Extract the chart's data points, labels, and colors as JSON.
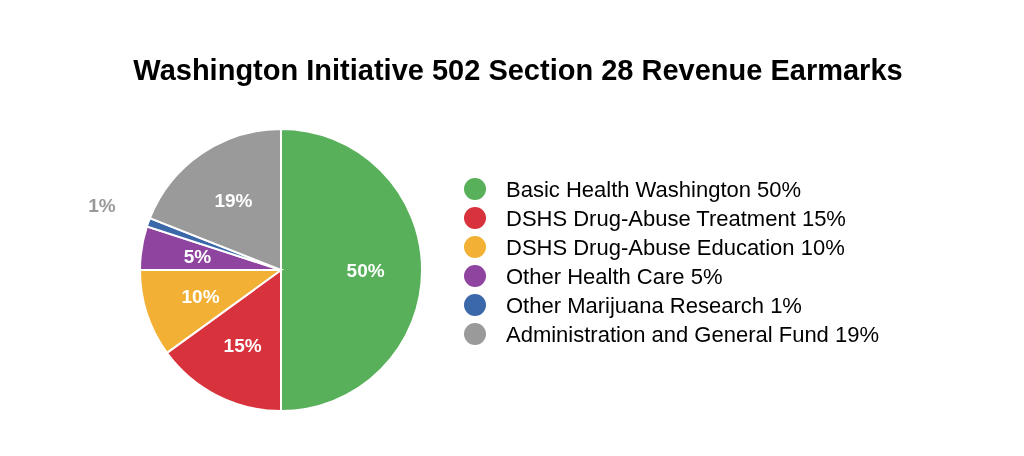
{
  "chart_data": {
    "type": "pie",
    "title": "Washington Initiative 502 Section 28 Revenue Earmarks",
    "categories": [
      "Basic Health Washington",
      "DSHS Drug-Abuse Treatment",
      "DSHS Drug-Abuse Education",
      "Other Health Care",
      "Other Marijuana Research",
      "Administration and General Fund"
    ],
    "values": [
      50,
      15,
      10,
      5,
      1,
      19
    ],
    "value_labels": [
      "50%",
      "15%",
      "10%",
      "5%",
      "1%",
      "19%"
    ],
    "colors": [
      "#58b05a",
      "#d8323c",
      "#f2b134",
      "#8f45a0",
      "#3b68a8",
      "#9a9a9a"
    ],
    "legend": "right"
  }
}
